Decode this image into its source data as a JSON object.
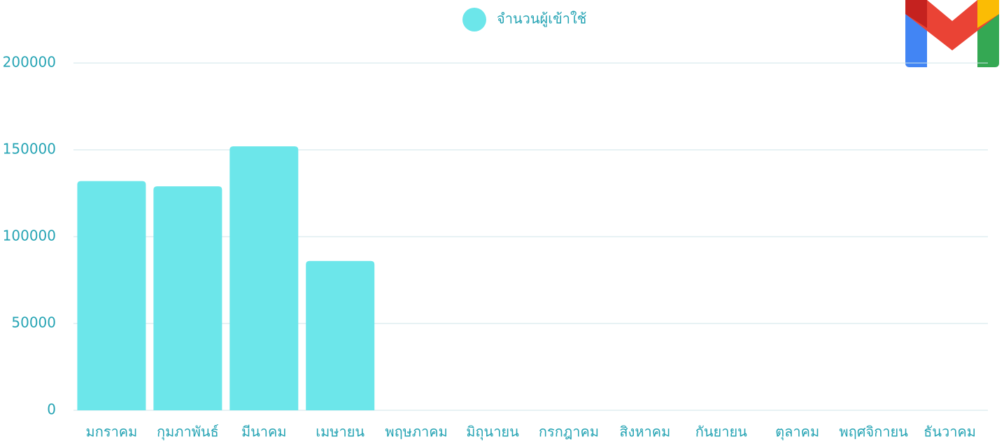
{
  "chart_data": {
    "type": "bar",
    "legend": "จำนวนผู้เข้าใช้",
    "categories": [
      "มกราคม",
      "กุมภาพันธ์",
      "มีนาคม",
      "เมษายน",
      "พฤษภาคม",
      "มิถุนายน",
      "กรกฎาคม",
      "สิงหาคม",
      "กันยายน",
      "ตุลาคม",
      "พฤศจิกายน",
      "ธันวาคม"
    ],
    "values": [
      132000,
      129000,
      152000,
      86000,
      null,
      null,
      null,
      null,
      null,
      null,
      null,
      null
    ],
    "color": "#6ce6ea",
    "ylim": [
      0,
      200000
    ],
    "yticks": [
      0,
      50000,
      100000,
      150000,
      200000
    ],
    "grid": true
  }
}
